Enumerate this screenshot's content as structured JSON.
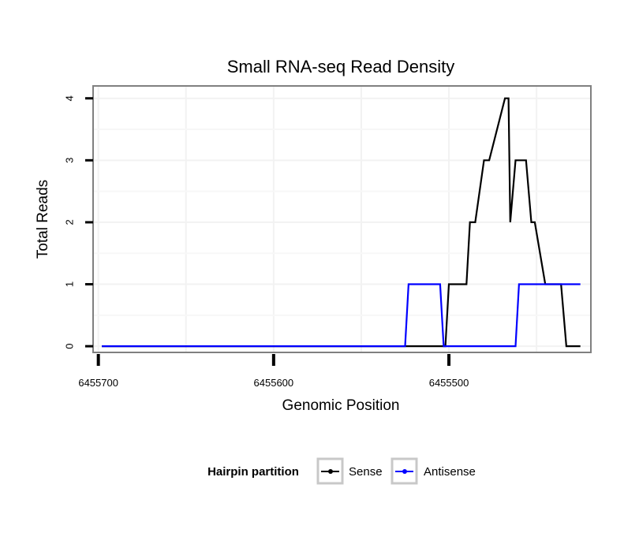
{
  "chart_data": {
    "type": "line",
    "title": "Small RNA-seq Read Density",
    "xlabel": "Genomic Position",
    "ylabel": "Total Reads",
    "x_reversed": true,
    "xlim": [
      6455703,
      6455419
    ],
    "ylim": [
      -0.1,
      4.2
    ],
    "x_ticks": [
      6455700,
      6455650,
      6455600,
      6455550,
      6455500,
      6455450
    ],
    "x_tick_labels": [
      "6455700",
      "6455600",
      "6455500"
    ],
    "x_tick_label_values": [
      6455700,
      6455600,
      6455500
    ],
    "x_major_ticks": [
      6455700,
      6455600,
      6455500
    ],
    "y_ticks": [
      0,
      1,
      2,
      3,
      4
    ],
    "y_tick_labels": [
      "0",
      "1",
      "2",
      "3",
      "4"
    ],
    "grid": true,
    "legend": {
      "title": "Hairpin partition",
      "position": "bottom",
      "entries": [
        "Sense",
        "Antisense"
      ]
    },
    "series": [
      {
        "name": "Sense",
        "color": "#000000",
        "x": [
          6455698,
          6455502,
          6455500,
          6455496,
          6455490,
          6455488,
          6455485,
          6455480,
          6455477,
          6455468,
          6455466,
          6455465,
          6455462,
          6455456,
          6455453,
          6455451,
          6455445,
          6455440,
          6455437,
          6455436,
          6455433,
          6455430,
          6455425
        ],
        "y": [
          0,
          0,
          1,
          1,
          1,
          2,
          2,
          3,
          3,
          4,
          4,
          2,
          3,
          3,
          2,
          2,
          1,
          1,
          1,
          1,
          0,
          0,
          0
        ]
      },
      {
        "name": "Antisense",
        "color": "#0000ff",
        "x": [
          6455698,
          6455525,
          6455523,
          6455505,
          6455503,
          6455462,
          6455460,
          6455425
        ],
        "y": [
          0,
          0,
          1,
          1,
          0,
          0,
          1,
          1
        ]
      }
    ]
  }
}
